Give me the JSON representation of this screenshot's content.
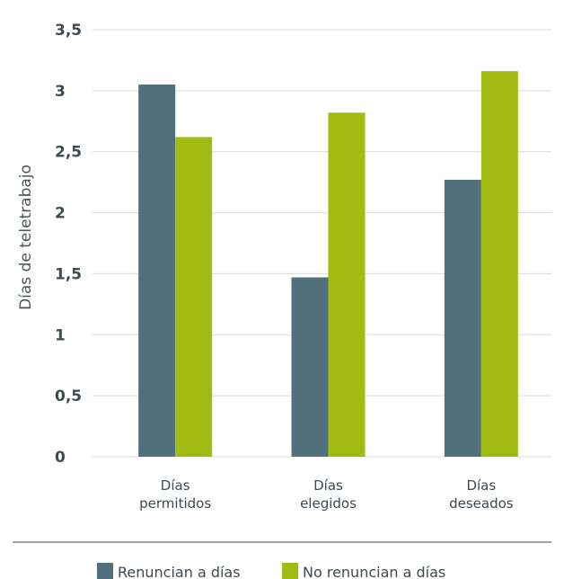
{
  "chart_data": {
    "type": "bar",
    "ylabel": "Días de teletrabajo",
    "ylim": [
      0,
      3.5
    ],
    "yticks": [
      0,
      0.5,
      1,
      1.5,
      2,
      2.5,
      3,
      3.5
    ],
    "ytick_labels": [
      "0",
      "0,5",
      "1",
      "1,5",
      "2",
      "2,5",
      "3",
      "3,5"
    ],
    "categories": [
      [
        "Días",
        "permitidos"
      ],
      [
        "Días",
        "elegidos"
      ],
      [
        "Días",
        "deseados"
      ]
    ],
    "series": [
      {
        "name": "Renuncian a días",
        "color": "#50717b",
        "values": [
          3.05,
          1.47,
          2.27
        ]
      },
      {
        "name": "No renuncian a días",
        "color": "#a2bb12",
        "values": [
          2.62,
          2.82,
          3.16
        ]
      }
    ],
    "grid": true,
    "legend": "bottom"
  }
}
